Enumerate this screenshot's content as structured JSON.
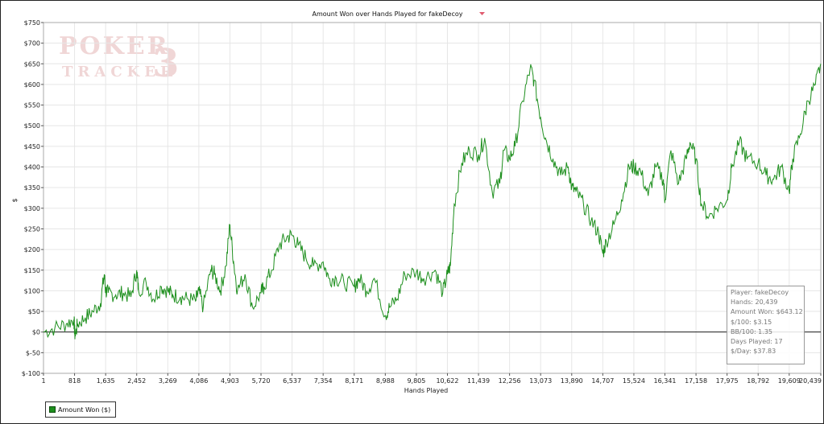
{
  "chart_data": {
    "type": "line",
    "title": "Amount Won over Hands Played for fakeDecoy",
    "xlabel": "Hands Played",
    "ylabel": "$",
    "xlim": [
      1,
      20439
    ],
    "ylim": [
      -100,
      750
    ],
    "grid": true,
    "x_ticks": [
      "1",
      "818",
      "1,635",
      "2,452",
      "3,269",
      "4,086",
      "4,903",
      "5,720",
      "6,537",
      "7,354",
      "8,171",
      "8,988",
      "9,805",
      "10,622",
      "11,439",
      "12,256",
      "13,073",
      "13,890",
      "14,707",
      "15,524",
      "16,341",
      "17,158",
      "17,975",
      "18,792",
      "19,609",
      "20,439"
    ],
    "y_ticks": [
      "$750",
      "$700",
      "$650",
      "$600",
      "$550",
      "$500",
      "$450",
      "$400",
      "$350",
      "$300",
      "$250",
      "$200",
      "$150",
      "$100",
      "$50",
      "$0",
      "$-50",
      "$-100"
    ],
    "legend_position": "bottom-left",
    "series": [
      {
        "name": "Amount Won ($)",
        "color": "#1e8f1e",
        "x": [
          1,
          300,
          600,
          800,
          830,
          900,
          1100,
          1300,
          1500,
          1600,
          1635,
          1700,
          1900,
          2100,
          2300,
          2452,
          2500,
          2700,
          2900,
          3100,
          3269,
          3400,
          3600,
          3800,
          4000,
          4086,
          4200,
          4400,
          4500,
          4650,
          4800,
          4903,
          5000,
          5100,
          5300,
          5500,
          5720,
          5800,
          6000,
          6200,
          6400,
          6537,
          6700,
          6900,
          7100,
          7354,
          7500,
          7700,
          7900,
          8171,
          8300,
          8500,
          8700,
          8988,
          9100,
          9300,
          9500,
          9805,
          10000,
          10300,
          10500,
          10622,
          10700,
          10800,
          11000,
          11200,
          11439,
          11600,
          11800,
          12000,
          12100,
          12256,
          12400,
          12600,
          12800,
          12900,
          13073,
          13200,
          13400,
          13600,
          13800,
          13890,
          14000,
          14200,
          14400,
          14600,
          14707,
          14800,
          15000,
          15200,
          15400,
          15524,
          15700,
          15900,
          16100,
          16300,
          16341,
          16500,
          16700,
          16900,
          17000,
          17158,
          17300,
          17500,
          17700,
          17975,
          18100,
          18300,
          18500,
          18792,
          19000,
          19200,
          19400,
          19609,
          19700,
          19900,
          20100,
          20300,
          20439
        ],
        "values": [
          0,
          10,
          20,
          30,
          -10,
          20,
          35,
          50,
          70,
          140,
          100,
          95,
          90,
          95,
          85,
          150,
          100,
          120,
          80,
          110,
          100,
          90,
          85,
          80,
          75,
          100,
          60,
          150,
          140,
          100,
          160,
          260,
          170,
          100,
          140,
          60,
          95,
          110,
          150,
          210,
          230,
          235,
          210,
          180,
          160,
          170,
          130,
          130,
          120,
          110,
          130,
          100,
          130,
          40,
          60,
          80,
          140,
          145,
          130,
          150,
          95,
          140,
          160,
          310,
          410,
          440,
          430,
          470,
          340,
          360,
          440,
          420,
          450,
          560,
          640,
          610,
          520,
          470,
          420,
          380,
          400,
          350,
          340,
          310,
          270,
          240,
          190,
          220,
          260,
          320,
          400,
          400,
          390,
          330,
          400,
          370,
          320,
          440,
          360,
          420,
          460,
          420,
          310,
          280,
          300,
          320,
          400,
          460,
          420,
          410,
          380,
          370,
          400,
          340,
          420,
          480,
          560,
          600,
          650
        ]
      }
    ]
  },
  "stats": [
    "Player: fakeDecoy",
    "Hands: 20,439",
    "Amount Won: $643.12",
    "$/100: $3.15",
    "BB/100: 1.35",
    "Days Played: 17",
    "$/Day: $37.83"
  ],
  "watermark": {
    "line1": "POKER",
    "line2": "TRACKER",
    "mark": "3"
  },
  "colors": {
    "line": "#1e8f1e",
    "grid": "#e6e6e6",
    "watermark": "#f0d6d6",
    "dropdown_arrow": "#e05a6e"
  },
  "icons": {
    "title_dropdown": "chevron-down-icon"
  }
}
